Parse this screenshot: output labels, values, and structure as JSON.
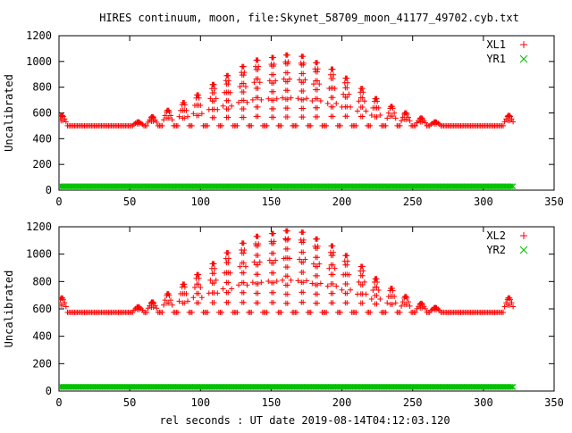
{
  "title": "HIRES continuum, moon, file:Skynet_58709_moon_41177_49702.cyb.txt",
  "xlabel": "rel seconds : UT date 2019-08-14T04:12:03.120",
  "colors": {
    "xl": "#ff0000",
    "yr": "#00c000"
  },
  "chart_data": [
    {
      "type": "scatter",
      "ylabel": "Uncalibrated",
      "xlim": [
        0,
        350
      ],
      "ylim": [
        0,
        1200
      ],
      "xticks": [
        0,
        50,
        100,
        150,
        200,
        250,
        300,
        350
      ],
      "yticks": [
        0,
        200,
        400,
        600,
        800,
        1000,
        1200
      ],
      "legend_position": "top-right",
      "series": [
        {
          "name": "XL1",
          "marker": "+",
          "baseline": 500,
          "x_range": [
            0,
            321
          ],
          "peaks": [
            {
              "x": 2,
              "y": 580
            },
            {
              "x": 56,
              "y": 530
            },
            {
              "x": 66,
              "y": 570
            },
            {
              "x": 77,
              "y": 620
            },
            {
              "x": 88,
              "y": 680
            },
            {
              "x": 98,
              "y": 740
            },
            {
              "x": 109,
              "y": 820
            },
            {
              "x": 119,
              "y": 890
            },
            {
              "x": 130,
              "y": 960
            },
            {
              "x": 140,
              "y": 1010
            },
            {
              "x": 151,
              "y": 1030
            },
            {
              "x": 161,
              "y": 1050
            },
            {
              "x": 172,
              "y": 1040
            },
            {
              "x": 182,
              "y": 990
            },
            {
              "x": 193,
              "y": 940
            },
            {
              "x": 203,
              "y": 870
            },
            {
              "x": 214,
              "y": 790
            },
            {
              "x": 224,
              "y": 710
            },
            {
              "x": 235,
              "y": 650
            },
            {
              "x": 245,
              "y": 600
            },
            {
              "x": 256,
              "y": 560
            },
            {
              "x": 266,
              "y": 530
            },
            {
              "x": 318,
              "y": 580
            }
          ]
        },
        {
          "name": "YR1",
          "marker": "x",
          "value": 30,
          "x_range": [
            0,
            321
          ]
        }
      ]
    },
    {
      "type": "scatter",
      "ylabel": "Uncalibrated",
      "xlim": [
        0,
        350
      ],
      "ylim": [
        0,
        1200
      ],
      "xticks": [
        0,
        50,
        100,
        150,
        200,
        250,
        300,
        350
      ],
      "yticks": [
        0,
        200,
        400,
        600,
        800,
        1000,
        1200
      ],
      "legend_position": "top-right",
      "series": [
        {
          "name": "XL2",
          "marker": "+",
          "baseline": 575,
          "x_range": [
            0,
            321
          ],
          "peaks": [
            {
              "x": 2,
              "y": 680
            },
            {
              "x": 56,
              "y": 615
            },
            {
              "x": 66,
              "y": 650
            },
            {
              "x": 77,
              "y": 710
            },
            {
              "x": 88,
              "y": 780
            },
            {
              "x": 98,
              "y": 850
            },
            {
              "x": 109,
              "y": 930
            },
            {
              "x": 119,
              "y": 1010
            },
            {
              "x": 130,
              "y": 1080
            },
            {
              "x": 140,
              "y": 1130
            },
            {
              "x": 151,
              "y": 1150
            },
            {
              "x": 161,
              "y": 1170
            },
            {
              "x": 172,
              "y": 1160
            },
            {
              "x": 182,
              "y": 1110
            },
            {
              "x": 193,
              "y": 1060
            },
            {
              "x": 203,
              "y": 990
            },
            {
              "x": 214,
              "y": 910
            },
            {
              "x": 224,
              "y": 820
            },
            {
              "x": 235,
              "y": 750
            },
            {
              "x": 245,
              "y": 690
            },
            {
              "x": 256,
              "y": 640
            },
            {
              "x": 266,
              "y": 610
            },
            {
              "x": 318,
              "y": 680
            }
          ]
        },
        {
          "name": "YR2",
          "marker": "x",
          "value": 30,
          "x_range": [
            0,
            321
          ]
        }
      ]
    }
  ]
}
